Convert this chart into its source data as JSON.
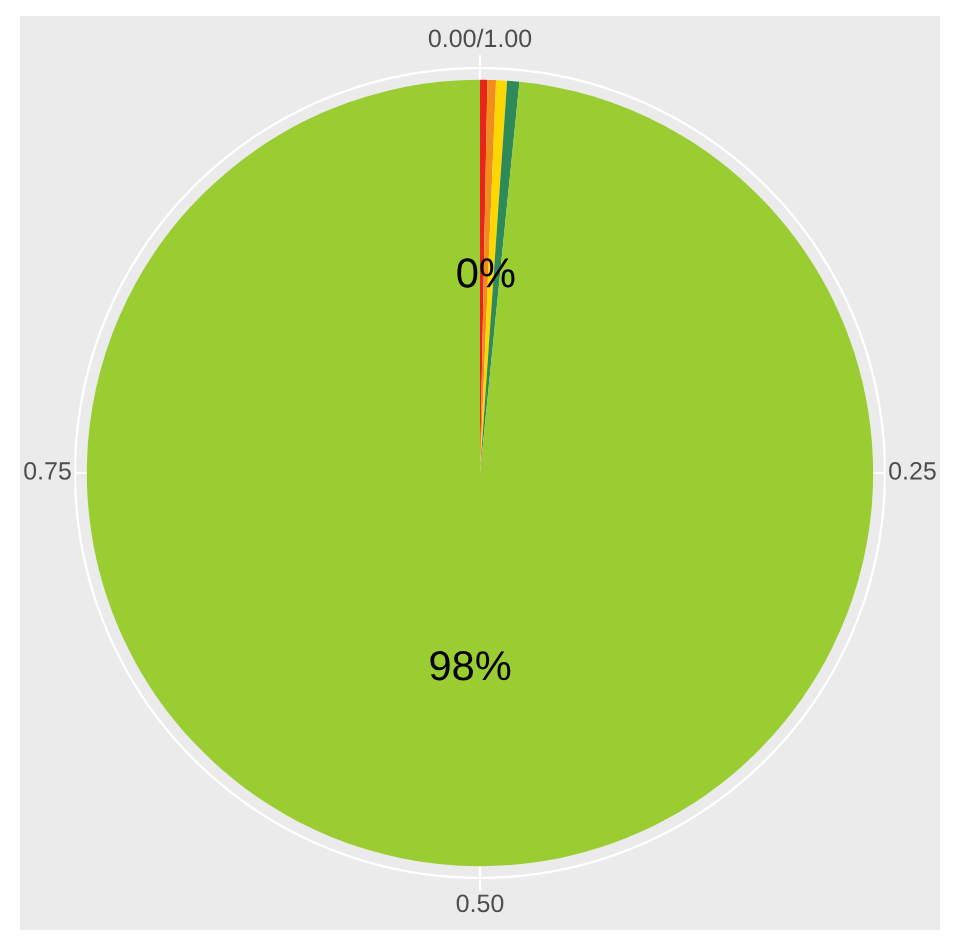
{
  "chart_data": {
    "type": "pie",
    "categories": [
      null,
      null,
      null,
      null,
      null
    ],
    "values": [
      0.3,
      0.35,
      0.45,
      0.5,
      98.4
    ],
    "colors": [
      "#e8251b",
      "#f28c1c",
      "#ffd700",
      "#2e8b57",
      "#9acd32"
    ],
    "value_labels": [
      null,
      "0%",
      null,
      null,
      "98%"
    ],
    "annotations": [
      "0.00/1.00",
      "0.25",
      "0.50",
      "0.75"
    ],
    "grid": true
  }
}
